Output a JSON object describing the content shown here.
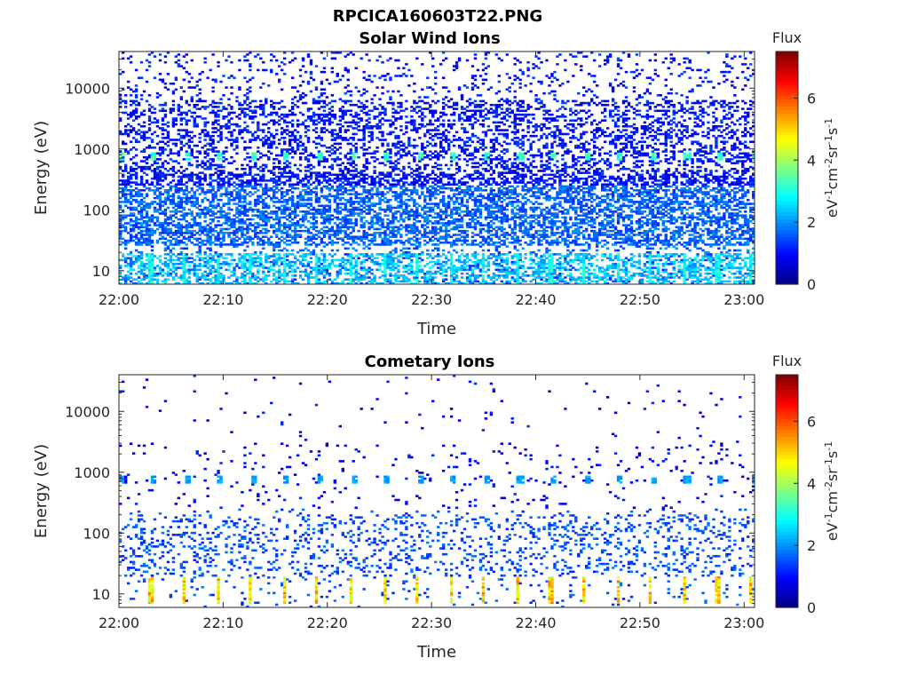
{
  "figure": {
    "title": "RPCICA160603T22.PNG"
  },
  "chart_data": [
    {
      "type": "heatmap",
      "title": "Solar Wind Ions",
      "xlabel": "Time",
      "ylabel": "Energy (eV)",
      "yscale": "log",
      "ylim": [
        6,
        40000
      ],
      "xlim": [
        "22:00",
        "23:01"
      ],
      "x_ticks": [
        "22:00",
        "22:10",
        "22:20",
        "22:30",
        "22:40",
        "22:50",
        "23:00"
      ],
      "y_ticks": [
        "10",
        "100",
        "1000",
        "10000"
      ],
      "colorbar": {
        "title": "Flux",
        "label": "eV-1cm-2sr-1s-1",
        "range": [
          0,
          7.5
        ],
        "ticks": [
          "0",
          "2",
          "4",
          "6"
        ],
        "colormap": "jet"
      },
      "features": [
        {
          "name": "background counts",
          "energy_range_eV": [
            6,
            40000
          ],
          "typical_flux": 1.5
        },
        {
          "name": "periodic solar wind peak",
          "energy_eV": 750,
          "typical_flux": 3.0,
          "period_minutes": 3.2
        },
        {
          "name": "low energy columns",
          "energy_range_eV": [
            6,
            20
          ],
          "typical_flux": 2.8
        }
      ],
      "grid": false
    },
    {
      "type": "heatmap",
      "title": "Cometary Ions",
      "xlabel": "Time",
      "ylabel": "Energy (eV)",
      "yscale": "log",
      "ylim": [
        6,
        40000
      ],
      "xlim": [
        "22:00",
        "23:01"
      ],
      "x_ticks": [
        "22:00",
        "22:10",
        "22:20",
        "22:30",
        "22:40",
        "22:50",
        "23:00"
      ],
      "y_ticks": [
        "10",
        "100",
        "1000",
        "10000"
      ],
      "colorbar": {
        "title": "Flux",
        "label": "eV-1cm-2sr-1s-1",
        "range": [
          0,
          7.5
        ],
        "ticks": [
          "0",
          "2",
          "4",
          "6"
        ],
        "colormap": "jet"
      },
      "features": [
        {
          "name": "sparse background counts",
          "energy_range_eV": [
            6,
            40000
          ],
          "typical_flux": 1.3
        },
        {
          "name": "periodic peak",
          "energy_eV": 750,
          "typical_flux": 2.0,
          "period_minutes": 3.2
        },
        {
          "name": "low energy bursts",
          "energy_range_eV": [
            7,
            20
          ],
          "typical_flux": 4.8,
          "peak_flux": 6.0
        }
      ],
      "grid": false
    }
  ]
}
